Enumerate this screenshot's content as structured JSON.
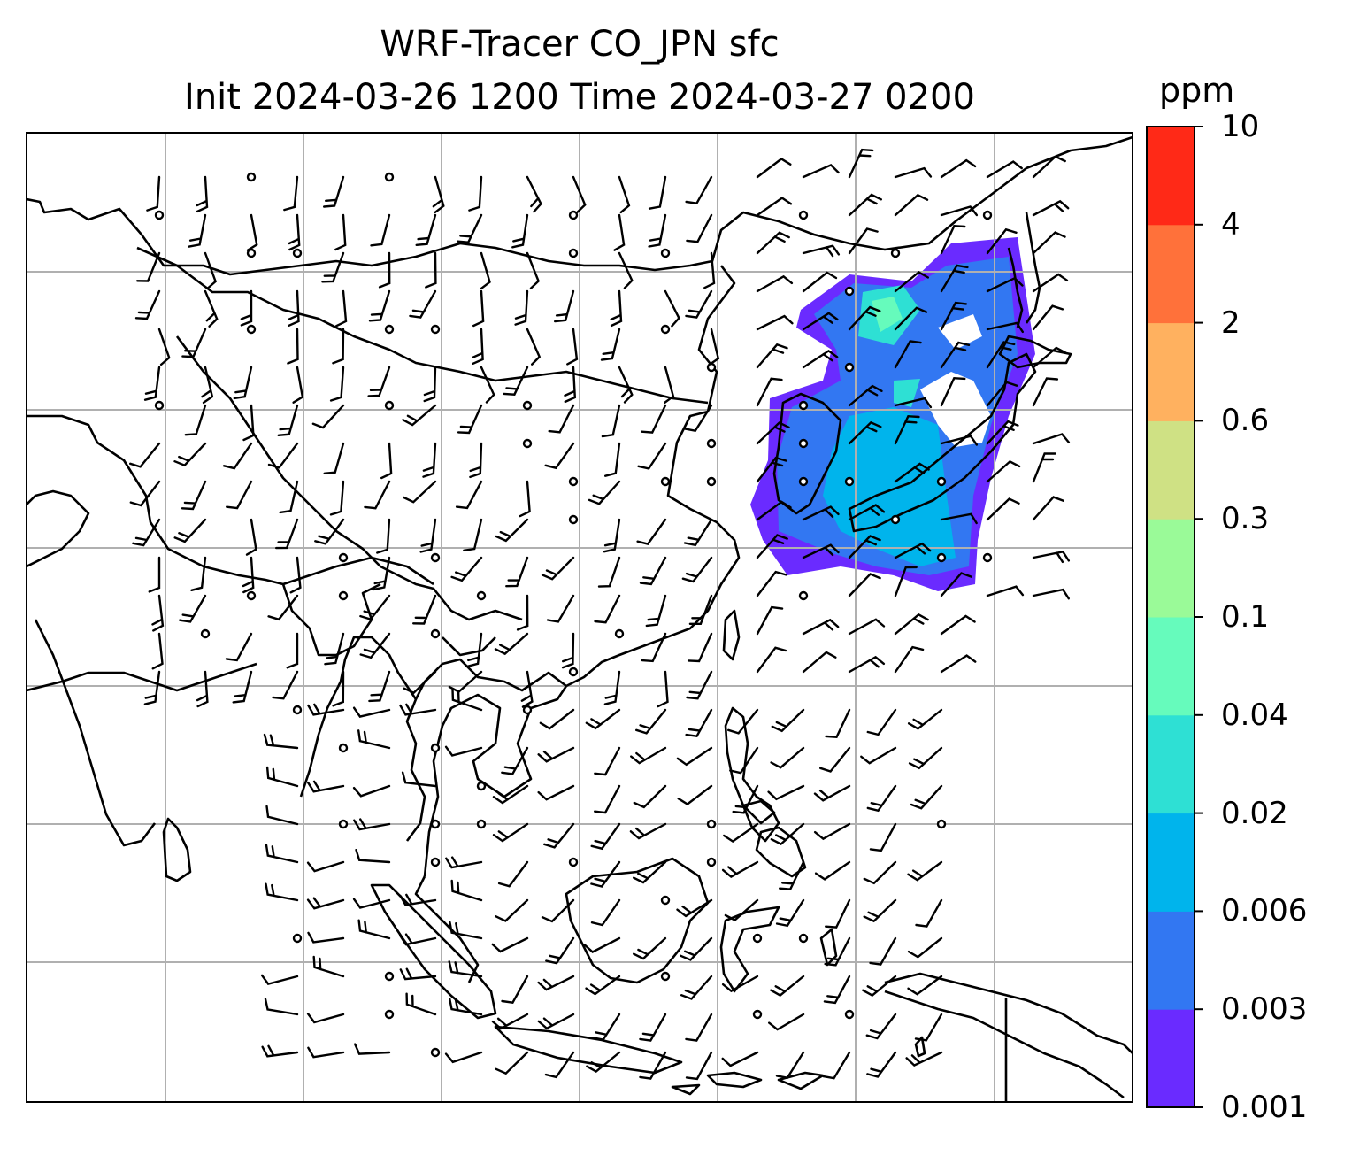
{
  "title_line1": "WRF-Tracer CO_JPN sfc",
  "title_line2": "Init 2024-03-26 1200 Time 2024-03-27 0200",
  "colorbar": {
    "unit": "ppm",
    "levels": [
      "0.001",
      "0.003",
      "0.006",
      "0.02",
      "0.04",
      "0.1",
      "0.3",
      "0.6",
      "2",
      "4",
      "10"
    ],
    "colors": [
      "#6a2bff",
      "#3277f2",
      "#00b4ec",
      "#2ee0d4",
      "#66fbbc",
      "#9afa98",
      "#cfe184",
      "#ffb15f",
      "#ff713a",
      "#ff2917"
    ]
  },
  "map": {
    "grid": "on",
    "field": "CO tracer concentration (surface)",
    "overlay": "wind barbs",
    "colors": {
      "coast": "#000000",
      "grid": "#b0b0b0"
    }
  }
}
